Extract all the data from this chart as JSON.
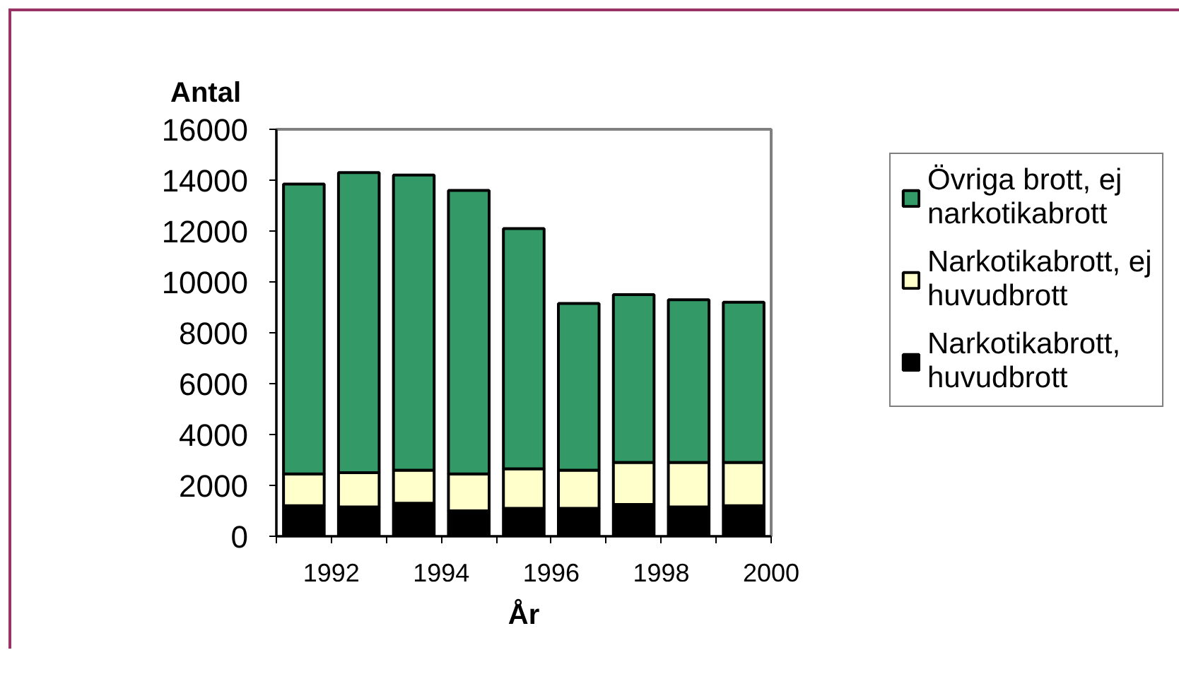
{
  "chart_data": {
    "type": "bar",
    "stacked": true,
    "xlabel": "År",
    "ylabel": "Antal",
    "x": [
      1991.5,
      1992.5,
      1993.5,
      1994.5,
      1995.5,
      1996.5,
      1997.5,
      1998.5,
      1999.5
    ],
    "xlim": [
      1991,
      2000
    ],
    "xticks": [
      {
        "value": 1991,
        "label": null
      },
      1992,
      {
        "value": 1993,
        "label": null
      },
      1994,
      {
        "value": 1995,
        "label": null
      },
      1996,
      {
        "value": 1997,
        "label": null
      },
      1998,
      {
        "value": 1999,
        "label": null
      },
      2000
    ],
    "ylim": [
      0,
      16000
    ],
    "yticks": [
      0,
      2000,
      4000,
      6000,
      8000,
      10000,
      12000,
      14000,
      16000
    ],
    "grid": false,
    "legend": "right",
    "series": [
      {
        "name": "Narkotikabrott, huvudbrott",
        "color": "#000000",
        "values": [
          1200,
          1150,
          1300,
          1000,
          1100,
          1100,
          1250,
          1150,
          1200
        ]
      },
      {
        "name": "Narkotikabrott, ej huvudbrott",
        "color": "#ffffcc",
        "values": [
          1250,
          1350,
          1300,
          1450,
          1550,
          1500,
          1650,
          1750,
          1700
        ]
      },
      {
        "name": "Övriga brott, ej narkotikabrott",
        "color": "#339966",
        "values": [
          11400,
          11800,
          11600,
          11150,
          9450,
          6550,
          6600,
          6400,
          6300
        ]
      }
    ]
  }
}
